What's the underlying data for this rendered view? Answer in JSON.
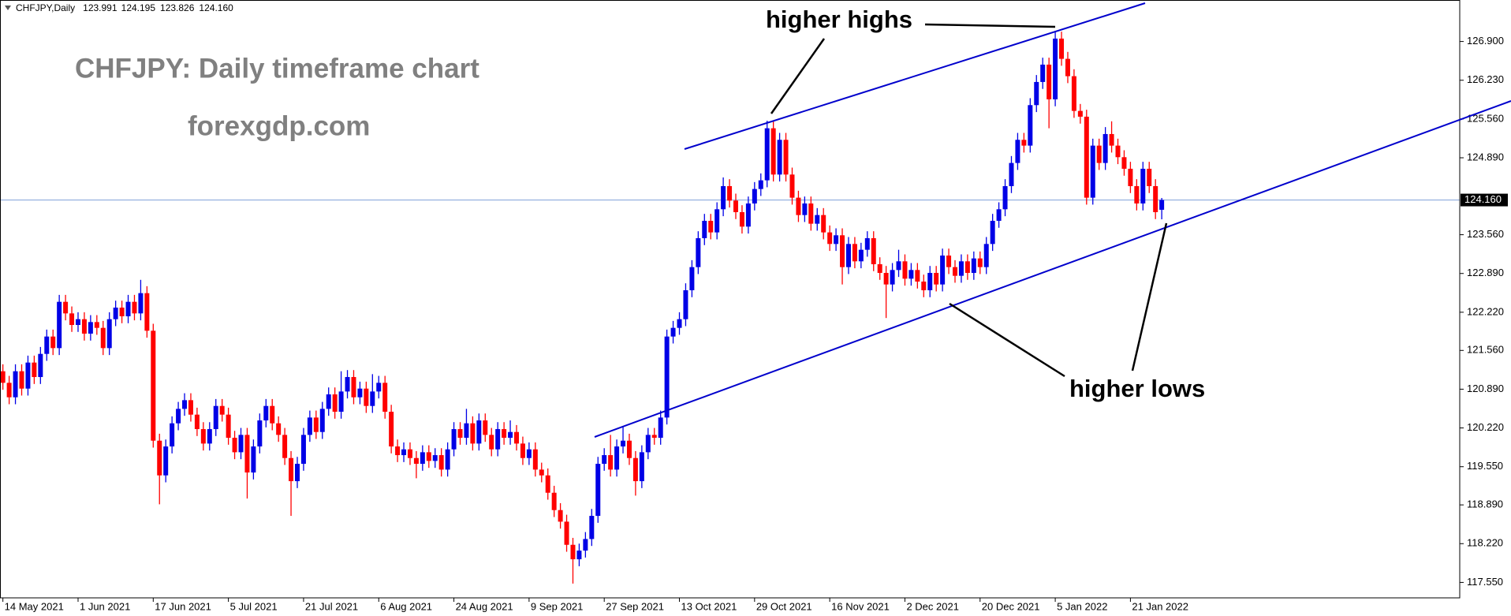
{
  "chart_data": {
    "type": "candlestick",
    "title": "CHFJPY: Daily timeframe chart",
    "subtitle": "forexgdp.com",
    "header": {
      "symbol": "CHFJPY,Daily",
      "ohlc_labels": [
        "123.991",
        "124.195",
        "123.826",
        "124.160"
      ]
    },
    "annotations": [
      "higher highs",
      "higher lows"
    ],
    "colors": {
      "up": "#0000e6",
      "down": "#ff0000",
      "price_line": "#7f9fd8"
    },
    "ylim": [
      117.283,
      127.617
    ],
    "yticks": [
      {
        "value": 117.55,
        "label": "117.550"
      },
      {
        "value": 118.22,
        "label": "118.220"
      },
      {
        "value": 118.89,
        "label": "118.890"
      },
      {
        "value": 119.55,
        "label": "119.550"
      },
      {
        "value": 120.22,
        "label": "120.220"
      },
      {
        "value": 120.89,
        "label": "120.890"
      },
      {
        "value": 121.56,
        "label": "121.560"
      },
      {
        "value": 122.22,
        "label": "122.220"
      },
      {
        "value": 122.89,
        "label": "122.890"
      },
      {
        "value": 123.56,
        "label": "123.560"
      },
      {
        "value": 124.89,
        "label": "124.890"
      },
      {
        "value": 125.56,
        "label": "125.560"
      },
      {
        "value": 126.23,
        "label": "126.230"
      },
      {
        "value": 126.9,
        "label": "126.900"
      }
    ],
    "current_price": {
      "value": 124.16,
      "label": "124.160"
    },
    "categories": [
      "14 May 2021",
      null,
      null,
      null,
      null,
      null,
      null,
      null,
      null,
      null,
      null,
      null,
      "1 Jun 2021",
      null,
      null,
      null,
      null,
      null,
      null,
      null,
      null,
      null,
      null,
      null,
      "17 Jun 2021",
      null,
      null,
      null,
      null,
      null,
      null,
      null,
      null,
      null,
      null,
      null,
      "5 Jul 2021",
      null,
      null,
      null,
      null,
      null,
      null,
      null,
      null,
      null,
      null,
      null,
      "21 Jul 2021",
      null,
      null,
      null,
      null,
      null,
      null,
      null,
      null,
      null,
      null,
      null,
      "6 Aug 2021",
      null,
      null,
      null,
      null,
      null,
      null,
      null,
      null,
      null,
      null,
      null,
      "24 Aug 2021",
      null,
      null,
      null,
      null,
      null,
      null,
      null,
      null,
      null,
      null,
      null,
      "9 Sep 2021",
      null,
      null,
      null,
      null,
      null,
      null,
      null,
      null,
      null,
      null,
      null,
      "27 Sep 2021",
      null,
      null,
      null,
      null,
      null,
      null,
      null,
      null,
      null,
      null,
      null,
      "13 Oct 2021",
      null,
      null,
      null,
      null,
      null,
      null,
      null,
      null,
      null,
      null,
      null,
      "29 Oct 2021",
      null,
      null,
      null,
      null,
      null,
      null,
      null,
      null,
      null,
      null,
      null,
      "16 Nov 2021",
      null,
      null,
      null,
      null,
      null,
      null,
      null,
      null,
      null,
      null,
      null,
      "2 Dec 2021",
      null,
      null,
      null,
      null,
      null,
      null,
      null,
      null,
      null,
      null,
      null,
      "20 Dec 2021",
      null,
      null,
      null,
      null,
      null,
      null,
      null,
      null,
      null,
      null,
      null,
      "5 Jan 2022",
      null,
      null,
      null,
      null,
      null,
      null,
      null,
      null,
      null,
      null,
      null,
      "21 Jan 2022",
      null,
      null,
      null,
      null,
      null
    ],
    "ohlc": [
      [
        121.2,
        121.32,
        120.88,
        121.0
      ],
      [
        121.0,
        121.12,
        120.63,
        120.75
      ],
      [
        120.75,
        121.32,
        120.63,
        121.2
      ],
      [
        121.2,
        121.32,
        120.78,
        120.9
      ],
      [
        120.9,
        121.47,
        120.78,
        121.35
      ],
      [
        121.35,
        121.47,
        120.98,
        121.1
      ],
      [
        121.1,
        121.62,
        120.98,
        121.5
      ],
      [
        121.5,
        121.92,
        121.38,
        121.8
      ],
      [
        121.8,
        121.92,
        121.48,
        121.6
      ],
      [
        121.6,
        122.52,
        121.48,
        122.4
      ],
      [
        122.4,
        122.52,
        122.08,
        122.2
      ],
      [
        122.2,
        122.32,
        121.88,
        122.0
      ],
      [
        122.0,
        122.22,
        121.88,
        122.1
      ],
      [
        122.1,
        122.22,
        121.73,
        121.85
      ],
      [
        121.85,
        122.17,
        121.73,
        122.05
      ],
      [
        122.05,
        122.17,
        121.83,
        121.95
      ],
      [
        121.95,
        122.07,
        121.48,
        121.6
      ],
      [
        121.6,
        122.22,
        121.48,
        122.1
      ],
      [
        122.1,
        122.42,
        121.98,
        122.3
      ],
      [
        122.3,
        122.42,
        122.03,
        122.15
      ],
      [
        122.15,
        122.52,
        122.03,
        122.4
      ],
      [
        122.4,
        122.52,
        122.08,
        122.2
      ],
      [
        122.2,
        122.78,
        122.08,
        122.55
      ],
      [
        122.55,
        122.67,
        121.78,
        121.9
      ],
      [
        121.9,
        122.02,
        119.88,
        120.0
      ],
      [
        120.0,
        120.12,
        118.9,
        119.4
      ],
      [
        119.4,
        120.02,
        119.28,
        119.9
      ],
      [
        119.9,
        120.42,
        119.78,
        120.3
      ],
      [
        120.3,
        120.67,
        120.18,
        120.55
      ],
      [
        120.55,
        120.82,
        120.43,
        120.7
      ],
      [
        120.7,
        120.82,
        120.33,
        120.45
      ],
      [
        120.45,
        120.57,
        120.08,
        120.2
      ],
      [
        120.2,
        120.32,
        119.83,
        119.95
      ],
      [
        119.95,
        120.32,
        119.83,
        120.2
      ],
      [
        120.2,
        120.72,
        120.08,
        120.6
      ],
      [
        120.6,
        120.72,
        120.33,
        120.45
      ],
      [
        120.45,
        120.57,
        119.93,
        120.05
      ],
      [
        120.05,
        120.17,
        119.68,
        119.8
      ],
      [
        119.8,
        120.22,
        119.68,
        120.1
      ],
      [
        120.1,
        120.22,
        119.0,
        119.45
      ],
      [
        119.45,
        120.02,
        119.33,
        119.9
      ],
      [
        119.9,
        120.47,
        119.78,
        120.35
      ],
      [
        120.35,
        120.72,
        120.23,
        120.6
      ],
      [
        120.6,
        120.72,
        120.18,
        120.3
      ],
      [
        120.3,
        120.42,
        119.98,
        120.1
      ],
      [
        120.1,
        120.22,
        119.58,
        119.7
      ],
      [
        119.7,
        119.82,
        118.7,
        119.3
      ],
      [
        119.3,
        119.72,
        119.18,
        119.6
      ],
      [
        119.6,
        120.22,
        119.48,
        120.1
      ],
      [
        120.1,
        120.52,
        119.98,
        120.4
      ],
      [
        120.4,
        120.52,
        120.03,
        120.15
      ],
      [
        120.15,
        120.67,
        120.03,
        120.55
      ],
      [
        120.55,
        120.92,
        120.43,
        120.8
      ],
      [
        120.8,
        120.92,
        120.38,
        120.5
      ],
      [
        120.5,
        121.2,
        120.38,
        120.85
      ],
      [
        120.85,
        121.22,
        120.73,
        121.1
      ],
      [
        121.1,
        121.22,
        120.63,
        120.75
      ],
      [
        120.75,
        121.02,
        120.63,
        120.9
      ],
      [
        120.9,
        121.02,
        120.48,
        120.6
      ],
      [
        120.6,
        121.15,
        120.48,
        120.85
      ],
      [
        120.85,
        121.12,
        120.73,
        121.0
      ],
      [
        121.0,
        121.12,
        120.38,
        120.5
      ],
      [
        120.5,
        120.62,
        119.78,
        119.9
      ],
      [
        119.9,
        120.02,
        119.63,
        119.75
      ],
      [
        119.75,
        119.97,
        119.63,
        119.85
      ],
      [
        119.85,
        119.97,
        119.58,
        119.7
      ],
      [
        119.7,
        119.82,
        119.35,
        119.6
      ],
      [
        119.6,
        119.92,
        119.48,
        119.8
      ],
      [
        119.8,
        119.92,
        119.53,
        119.65
      ],
      [
        119.65,
        119.87,
        119.53,
        119.75
      ],
      [
        119.75,
        119.87,
        119.38,
        119.5
      ],
      [
        119.5,
        119.97,
        119.38,
        119.85
      ],
      [
        119.85,
        120.32,
        119.73,
        120.2
      ],
      [
        120.2,
        120.32,
        119.93,
        120.05
      ],
      [
        120.05,
        120.55,
        119.93,
        120.3
      ],
      [
        120.3,
        120.42,
        119.83,
        119.95
      ],
      [
        119.95,
        120.47,
        119.83,
        120.35
      ],
      [
        120.35,
        120.47,
        119.98,
        120.1
      ],
      [
        120.1,
        120.22,
        119.73,
        119.85
      ],
      [
        119.85,
        120.32,
        119.73,
        120.2
      ],
      [
        120.2,
        120.32,
        119.93,
        120.05
      ],
      [
        120.05,
        120.35,
        119.93,
        120.15
      ],
      [
        120.15,
        120.27,
        119.83,
        119.95
      ],
      [
        119.95,
        120.07,
        119.58,
        119.7
      ],
      [
        119.7,
        119.97,
        119.58,
        119.85
      ],
      [
        119.85,
        119.97,
        119.38,
        119.5
      ],
      [
        119.5,
        119.62,
        119.28,
        119.4
      ],
      [
        119.4,
        119.52,
        118.98,
        119.1
      ],
      [
        119.1,
        119.22,
        118.68,
        118.8
      ],
      [
        118.8,
        118.92,
        118.48,
        118.6
      ],
      [
        118.6,
        118.72,
        118.08,
        118.2
      ],
      [
        118.2,
        118.32,
        117.53,
        117.95
      ],
      [
        117.95,
        118.22,
        117.83,
        118.1
      ],
      [
        118.1,
        118.42,
        117.98,
        118.3
      ],
      [
        118.3,
        118.82,
        118.18,
        118.7
      ],
      [
        118.7,
        119.72,
        118.58,
        119.6
      ],
      [
        119.6,
        119.87,
        119.48,
        119.75
      ],
      [
        119.75,
        120.1,
        119.38,
        119.5
      ],
      [
        119.5,
        120.02,
        119.38,
        119.9
      ],
      [
        119.9,
        120.25,
        119.78,
        120.0
      ],
      [
        120.0,
        120.12,
        119.58,
        119.7
      ],
      [
        119.7,
        119.82,
        119.05,
        119.3
      ],
      [
        119.3,
        119.92,
        119.18,
        119.8
      ],
      [
        119.8,
        120.22,
        119.68,
        120.1
      ],
      [
        120.1,
        120.22,
        119.93,
        120.05
      ],
      [
        120.05,
        120.52,
        119.93,
        120.4
      ],
      [
        120.4,
        121.92,
        120.28,
        121.8
      ],
      [
        121.8,
        122.07,
        121.68,
        121.95
      ],
      [
        121.95,
        122.22,
        121.83,
        122.1
      ],
      [
        122.1,
        122.72,
        121.98,
        122.6
      ],
      [
        122.6,
        123.12,
        122.48,
        123.0
      ],
      [
        123.0,
        123.62,
        122.88,
        123.5
      ],
      [
        123.5,
        123.92,
        123.38,
        123.8
      ],
      [
        123.8,
        123.92,
        123.48,
        123.6
      ],
      [
        123.6,
        124.12,
        123.48,
        124.0
      ],
      [
        124.0,
        124.55,
        123.88,
        124.4
      ],
      [
        124.4,
        124.52,
        124.03,
        124.15
      ],
      [
        124.15,
        124.27,
        123.83,
        123.95
      ],
      [
        123.95,
        124.07,
        123.58,
        123.7
      ],
      [
        123.7,
        124.22,
        123.58,
        124.1
      ],
      [
        124.1,
        124.47,
        123.98,
        124.35
      ],
      [
        124.35,
        124.62,
        124.23,
        124.5
      ],
      [
        124.5,
        125.53,
        124.38,
        125.4
      ],
      [
        125.4,
        125.52,
        124.48,
        124.6
      ],
      [
        124.6,
        125.32,
        124.48,
        125.2
      ],
      [
        125.2,
        125.32,
        124.48,
        124.6
      ],
      [
        124.6,
        124.72,
        124.08,
        124.2
      ],
      [
        124.2,
        124.32,
        123.78,
        123.9
      ],
      [
        123.9,
        124.22,
        123.78,
        124.1
      ],
      [
        124.1,
        124.22,
        123.63,
        123.75
      ],
      [
        123.75,
        124.02,
        123.63,
        123.9
      ],
      [
        123.9,
        124.02,
        123.48,
        123.6
      ],
      [
        123.6,
        123.72,
        123.28,
        123.4
      ],
      [
        123.4,
        123.67,
        123.28,
        123.55
      ],
      [
        123.55,
        123.67,
        122.7,
        123.0
      ],
      [
        123.0,
        123.52,
        122.88,
        123.4
      ],
      [
        123.4,
        123.52,
        122.98,
        123.1
      ],
      [
        123.1,
        123.42,
        122.98,
        123.3
      ],
      [
        123.3,
        123.62,
        123.18,
        123.5
      ],
      [
        123.5,
        123.62,
        122.93,
        123.05
      ],
      [
        123.05,
        123.17,
        122.78,
        122.9
      ],
      [
        122.9,
        123.02,
        122.12,
        122.7
      ],
      [
        122.7,
        123.07,
        122.58,
        122.95
      ],
      [
        122.95,
        123.3,
        122.83,
        123.1
      ],
      [
        123.1,
        123.22,
        122.68,
        122.8
      ],
      [
        122.8,
        123.07,
        122.68,
        122.95
      ],
      [
        122.95,
        123.07,
        122.63,
        122.75
      ],
      [
        122.75,
        122.87,
        122.48,
        122.6
      ],
      [
        122.6,
        123.02,
        122.48,
        122.9
      ],
      [
        122.9,
        123.02,
        122.58,
        122.7
      ],
      [
        122.7,
        123.32,
        122.58,
        123.2
      ],
      [
        123.2,
        123.32,
        122.88,
        123.0
      ],
      [
        123.0,
        123.12,
        122.73,
        122.85
      ],
      [
        122.85,
        123.22,
        122.73,
        123.1
      ],
      [
        123.1,
        123.22,
        122.78,
        122.9
      ],
      [
        122.9,
        123.27,
        122.78,
        123.15
      ],
      [
        123.15,
        123.27,
        122.88,
        123.0
      ],
      [
        123.0,
        123.52,
        122.88,
        123.4
      ],
      [
        123.4,
        123.92,
        123.28,
        123.8
      ],
      [
        123.8,
        124.12,
        123.68,
        124.0
      ],
      [
        124.0,
        124.52,
        123.88,
        124.4
      ],
      [
        124.4,
        124.92,
        124.28,
        124.8
      ],
      [
        124.8,
        125.32,
        124.68,
        125.2
      ],
      [
        125.2,
        125.32,
        124.98,
        125.1
      ],
      [
        125.1,
        125.92,
        124.98,
        125.8
      ],
      [
        125.8,
        126.32,
        125.68,
        126.2
      ],
      [
        126.2,
        126.62,
        126.08,
        126.5
      ],
      [
        126.5,
        126.62,
        125.4,
        125.9
      ],
      [
        125.9,
        127.08,
        125.78,
        126.95
      ],
      [
        126.95,
        127.07,
        126.48,
        126.6
      ],
      [
        126.6,
        126.72,
        126.18,
        126.3
      ],
      [
        126.3,
        126.42,
        125.58,
        125.7
      ],
      [
        125.7,
        125.82,
        125.48,
        125.6
      ],
      [
        125.6,
        125.72,
        124.08,
        124.2
      ],
      [
        124.2,
        125.22,
        124.08,
        125.1
      ],
      [
        125.1,
        125.22,
        124.68,
        124.8
      ],
      [
        124.8,
        125.42,
        124.68,
        125.3
      ],
      [
        125.3,
        125.52,
        124.98,
        125.1
      ],
      [
        125.1,
        125.22,
        124.78,
        124.9
      ],
      [
        124.9,
        125.02,
        124.58,
        124.7
      ],
      [
        124.7,
        124.82,
        124.28,
        124.4
      ],
      [
        124.4,
        124.52,
        123.98,
        124.1
      ],
      [
        124.1,
        124.82,
        123.98,
        124.7
      ],
      [
        124.7,
        124.82,
        124.28,
        124.4
      ],
      [
        124.4,
        124.52,
        123.83,
        123.95
      ],
      [
        123.991,
        124.195,
        123.826,
        124.16
      ]
    ]
  }
}
